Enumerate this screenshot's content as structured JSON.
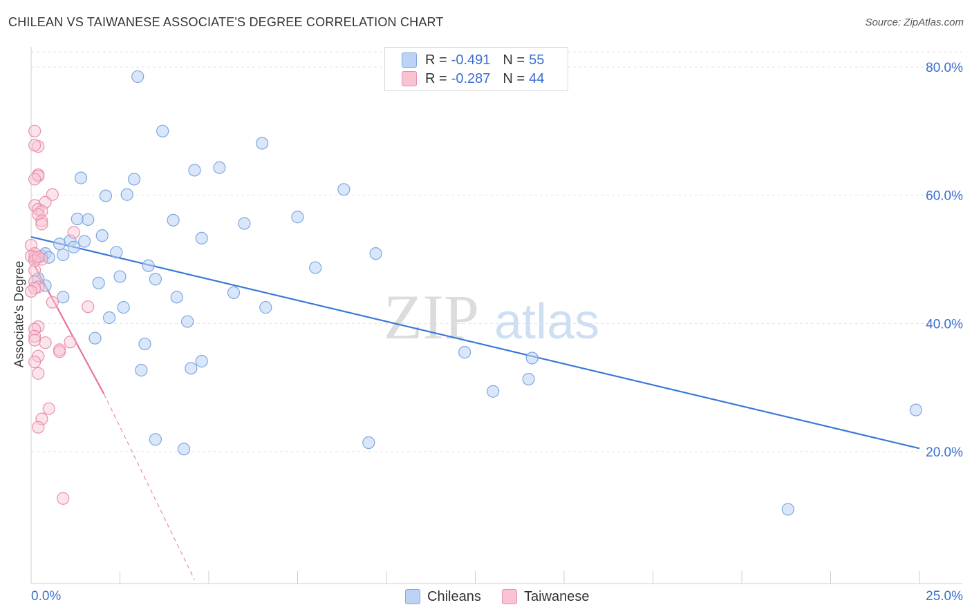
{
  "title": "CHILEAN VS TAIWANESE ASSOCIATE'S DEGREE CORRELATION CHART",
  "source": "Source: ZipAtlas.com",
  "watermark": {
    "zip": "ZIP",
    "atlas": "atlas"
  },
  "legend": {
    "row1": {
      "r_label": "R =",
      "r_value": "-0.491",
      "n_label": "N =",
      "n_value": "55"
    },
    "row2": {
      "r_label": "R =",
      "r_value": "-0.287",
      "n_label": "N =",
      "n_value": "44"
    }
  },
  "colors": {
    "chileans": "#3a78d6",
    "taiwanese": "#e8739b",
    "axis_text": "#3a6fd0"
  },
  "chart_data": {
    "type": "scatter",
    "title": "CHILEAN VS TAIWANESE ASSOCIATE'S DEGREE CORRELATION CHART",
    "xlabel": "",
    "ylabel": "Associate's Degree",
    "xlim": [
      0,
      25
    ],
    "ylim": [
      0,
      80
    ],
    "x_tick_labels": [
      "0.0%",
      "25.0%"
    ],
    "y_tick_labels": [
      "20.0%",
      "40.0%",
      "60.0%",
      "80.0%"
    ],
    "y_ticks": [
      20,
      40,
      60,
      80
    ],
    "grid": true,
    "series": [
      {
        "name": "Chileans",
        "color": "#3a78d6",
        "points": [
          [
            3.0,
            78.5
          ],
          [
            3.7,
            70.0
          ],
          [
            6.5,
            68.1
          ],
          [
            4.6,
            63.9
          ],
          [
            5.3,
            64.3
          ],
          [
            1.4,
            62.7
          ],
          [
            2.9,
            62.5
          ],
          [
            2.1,
            59.9
          ],
          [
            2.7,
            60.1
          ],
          [
            8.8,
            60.9
          ],
          [
            1.3,
            56.3
          ],
          [
            1.6,
            56.2
          ],
          [
            4.0,
            56.1
          ],
          [
            6.0,
            55.6
          ],
          [
            7.5,
            56.6
          ],
          [
            0.3,
            50.5
          ],
          [
            0.4,
            50.9
          ],
          [
            0.8,
            52.4
          ],
          [
            1.1,
            52.9
          ],
          [
            1.2,
            51.9
          ],
          [
            1.5,
            52.8
          ],
          [
            2.0,
            53.7
          ],
          [
            2.4,
            51.1
          ],
          [
            0.9,
            50.7
          ],
          [
            4.8,
            53.3
          ],
          [
            3.3,
            49.0
          ],
          [
            3.5,
            46.9
          ],
          [
            8.0,
            48.7
          ],
          [
            9.7,
            50.9
          ],
          [
            1.9,
            46.3
          ],
          [
            2.5,
            47.3
          ],
          [
            0.4,
            45.9
          ],
          [
            0.9,
            44.1
          ],
          [
            2.6,
            42.5
          ],
          [
            4.1,
            44.1
          ],
          [
            5.7,
            44.8
          ],
          [
            6.6,
            42.5
          ],
          [
            2.2,
            40.9
          ],
          [
            4.4,
            40.3
          ],
          [
            1.8,
            37.7
          ],
          [
            3.2,
            36.8
          ],
          [
            4.8,
            34.1
          ],
          [
            4.5,
            33.0
          ],
          [
            3.1,
            32.7
          ],
          [
            12.2,
            35.5
          ],
          [
            14.1,
            34.6
          ],
          [
            14.0,
            31.3
          ],
          [
            13.0,
            29.4
          ],
          [
            24.9,
            26.5
          ],
          [
            3.5,
            21.9
          ],
          [
            4.3,
            20.4
          ],
          [
            9.5,
            21.4
          ],
          [
            21.3,
            11.0
          ],
          [
            0.2,
            47.0
          ],
          [
            0.5,
            50.3
          ]
        ]
      },
      {
        "name": "Taiwanese",
        "color": "#e8739b",
        "points": [
          [
            0.1,
            70.0
          ],
          [
            0.2,
            67.6
          ],
          [
            0.1,
            67.8
          ],
          [
            0.2,
            63.2
          ],
          [
            0.2,
            63.0
          ],
          [
            0.1,
            62.5
          ],
          [
            0.6,
            60.1
          ],
          [
            0.4,
            58.9
          ],
          [
            0.1,
            58.4
          ],
          [
            0.2,
            57.8
          ],
          [
            0.3,
            57.5
          ],
          [
            0.2,
            57.0
          ],
          [
            0.3,
            56.0
          ],
          [
            0.3,
            55.5
          ],
          [
            1.2,
            54.2
          ],
          [
            0.0,
            52.2
          ],
          [
            0.1,
            50.9
          ],
          [
            0.1,
            50.3
          ],
          [
            0.3,
            50.0
          ],
          [
            0.1,
            48.3
          ],
          [
            0.1,
            46.5
          ],
          [
            0.2,
            45.7
          ],
          [
            0.1,
            45.5
          ],
          [
            0.6,
            43.3
          ],
          [
            1.6,
            42.6
          ],
          [
            0.2,
            39.5
          ],
          [
            0.1,
            39.1
          ],
          [
            0.1,
            38.0
          ],
          [
            0.1,
            37.4
          ],
          [
            0.4,
            37.0
          ],
          [
            1.1,
            37.1
          ],
          [
            0.8,
            35.9
          ],
          [
            0.8,
            35.6
          ],
          [
            0.2,
            34.9
          ],
          [
            0.1,
            34.0
          ],
          [
            0.2,
            32.2
          ],
          [
            0.5,
            26.7
          ],
          [
            0.3,
            25.1
          ],
          [
            0.2,
            23.8
          ],
          [
            0.9,
            12.7
          ],
          [
            0.0,
            45.0
          ],
          [
            0.0,
            50.5
          ],
          [
            0.1,
            49.8
          ],
          [
            0.2,
            50.4
          ]
        ]
      }
    ],
    "trendlines": [
      {
        "series": "Chileans",
        "x": [
          0,
          25
        ],
        "y": [
          53.5,
          20.5
        ],
        "style": "solid"
      },
      {
        "series": "Taiwanese",
        "x": [
          0,
          2.05
        ],
        "y": [
          50.0,
          29.0
        ],
        "style": "solid"
      },
      {
        "series": "Taiwanese",
        "x": [
          2.05,
          4.6
        ],
        "y": [
          29.0,
          0.0
        ],
        "style": "dashed"
      }
    ]
  },
  "bottom_legend": {
    "chileans": "Chileans",
    "taiwanese": "Taiwanese"
  }
}
